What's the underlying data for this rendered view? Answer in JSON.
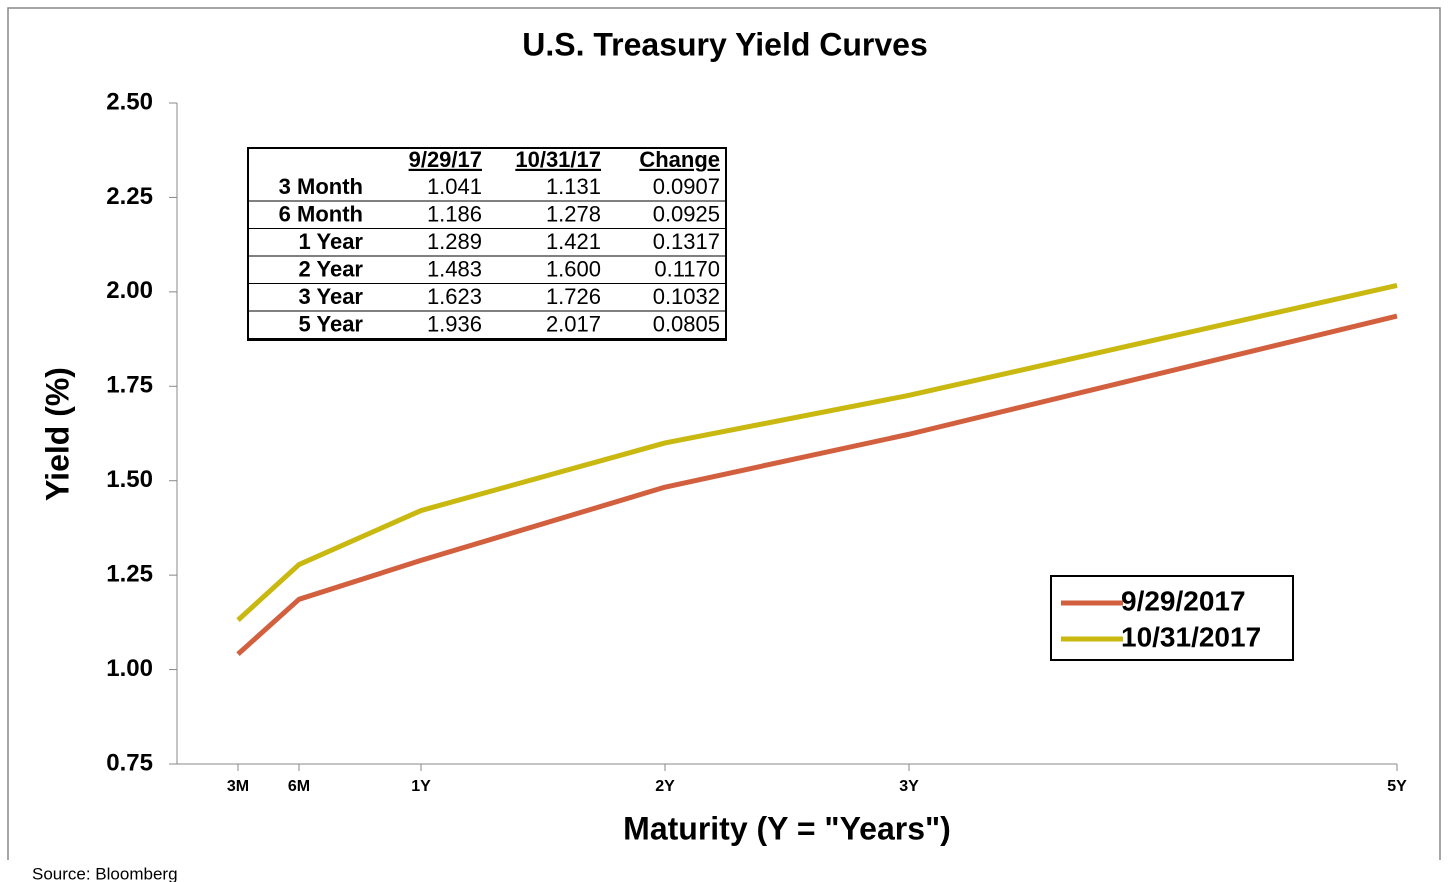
{
  "chart_data": {
    "type": "line",
    "title": "U.S. Treasury Yield Curves",
    "x_label": "Maturity (Y = \"Years\")",
    "y_label": "Yield (%)",
    "x": [
      0.25,
      0.5,
      1,
      2,
      3,
      5
    ],
    "xlim": [
      0,
      5
    ],
    "xticks": [
      {
        "value": 0.25,
        "label": "3M"
      },
      {
        "value": 0.5,
        "label": "6M"
      },
      {
        "value": 1,
        "label": "1Y"
      },
      {
        "value": 2,
        "label": "2Y"
      },
      {
        "value": 3,
        "label": "3Y"
      },
      {
        "value": 5,
        "label": "5Y"
      }
    ],
    "ylim": [
      0.75,
      2.5
    ],
    "yticks": [
      0.75,
      {
        "value": 1,
        "label": "1.00"
      },
      1.25,
      {
        "value": 1.5,
        "label": "1.50"
      },
      1.75,
      {
        "value": 2,
        "label": "2.00"
      },
      2.25,
      {
        "value": 2.5,
        "label": "2.50"
      }
    ],
    "series": [
      {
        "name": "9/29/2017",
        "color": "#d2603f",
        "values": [
          1.041,
          1.186,
          1.289,
          1.483,
          1.623,
          1.936
        ]
      },
      {
        "name": "10/31/2017",
        "color": "#c9b810",
        "values": [
          1.131,
          1.278,
          1.421,
          1.6,
          1.726,
          2.017
        ]
      }
    ],
    "legend": "lower-right",
    "table": {
      "header": [
        "9/29/17",
        "10/31/17",
        "Change"
      ],
      "rows": [
        [
          "3 Month",
          "1.041",
          "1.131",
          "0.0907"
        ],
        [
          "6 Month",
          "1.186",
          "1.278",
          "0.0925"
        ],
        [
          "1 Year",
          "1.289",
          "1.421",
          "0.1317"
        ],
        [
          "2 Year",
          "1.483",
          "1.600",
          "0.1170"
        ],
        [
          "3 Year",
          "1.623",
          "1.726",
          "0.1032"
        ],
        [
          "5 Year",
          "1.936",
          "2.017",
          "0.0805"
        ]
      ]
    },
    "source": "Source: Bloomberg"
  }
}
